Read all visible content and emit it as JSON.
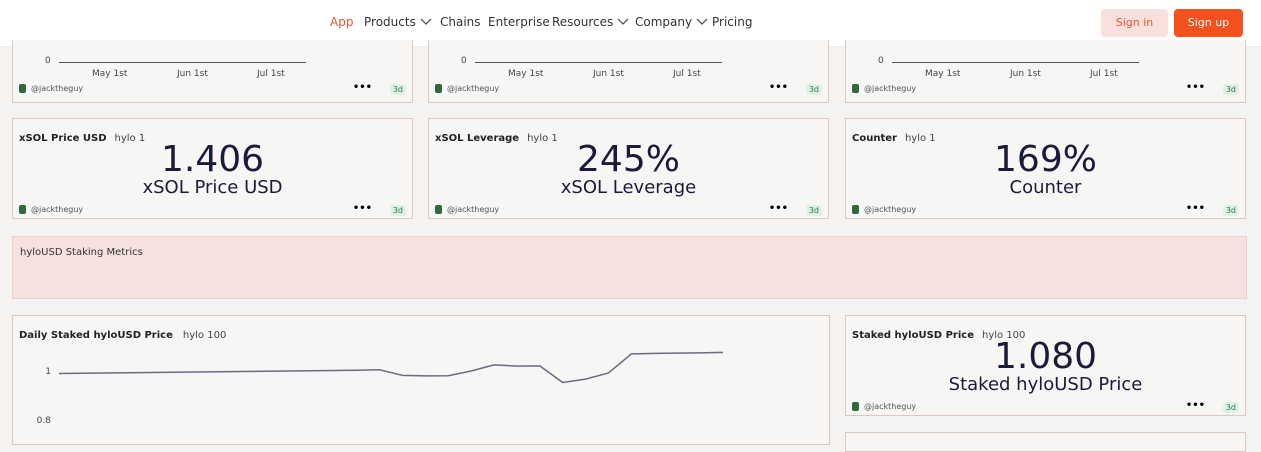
{
  "nav": {
    "items": [
      "App",
      "Products",
      "Chains",
      "Enterprise",
      "Resources",
      "Company",
      "Pricing"
    ],
    "sign_in": "Sign in",
    "sign_up": "Sign up"
  },
  "top_charts": [
    {
      "yticks": [
        0
      ],
      "xticks": [
        "May 1st",
        "Jun 1st",
        "Jul 1st"
      ],
      "author": "@jacktheguy",
      "age": "3d"
    },
    {
      "yticks": [
        0
      ],
      "xticks": [
        "May 1st",
        "Jun 1st",
        "Jul 1st"
      ],
      "author": "@jacktheguy",
      "age": "3d"
    },
    {
      "yticks": [
        0
      ],
      "xticks": [
        "May 1st",
        "Jun 1st",
        "Jul 1st"
      ],
      "author": "@jacktheguy",
      "age": "3d"
    }
  ],
  "counters": [
    {
      "title": "xSOL Price USD",
      "query": "hylo 1",
      "value": "1.406",
      "label": "xSOL Price USD",
      "author": "@jacktheguy",
      "age": "3d"
    },
    {
      "title": "xSOL Leverage",
      "query": "hylo 1",
      "value": "245%",
      "label": "xSOL Leverage",
      "author": "@jacktheguy",
      "age": "3d"
    },
    {
      "title": "Counter",
      "query": "hylo 1",
      "value": "169%",
      "label": "Counter",
      "author": "@jacktheguy",
      "age": "3d"
    }
  ],
  "section": "hyloUSD Staking Metrics",
  "chart_data": {
    "type": "line",
    "title": "Daily Staked hyloUSD Price",
    "query": "hylo 100",
    "color": "#6b6b80",
    "values": [
      0.99,
      0.991,
      0.992,
      0.993,
      0.994,
      0.995,
      0.996,
      0.997,
      0.998,
      0.999,
      1,
      1.001,
      1.002,
      1.003,
      1.005,
      0.982,
      0.98,
      0.981,
      1,
      1.025,
      1.02,
      1.021,
      0.953,
      0.967,
      0.992,
      1.07,
      1.072,
      1.073,
      1.074,
      1.076
    ],
    "ylim": [
      0.72,
      1.12
    ],
    "yticks": [
      0.8,
      1
    ]
  },
  "staked_counter": {
    "title": "Staked hyloUSD Price",
    "query": "hylo 100",
    "value": "1.080",
    "label": "Staked hyloUSD Price",
    "author": "@jacktheguy",
    "age": "3d"
  }
}
